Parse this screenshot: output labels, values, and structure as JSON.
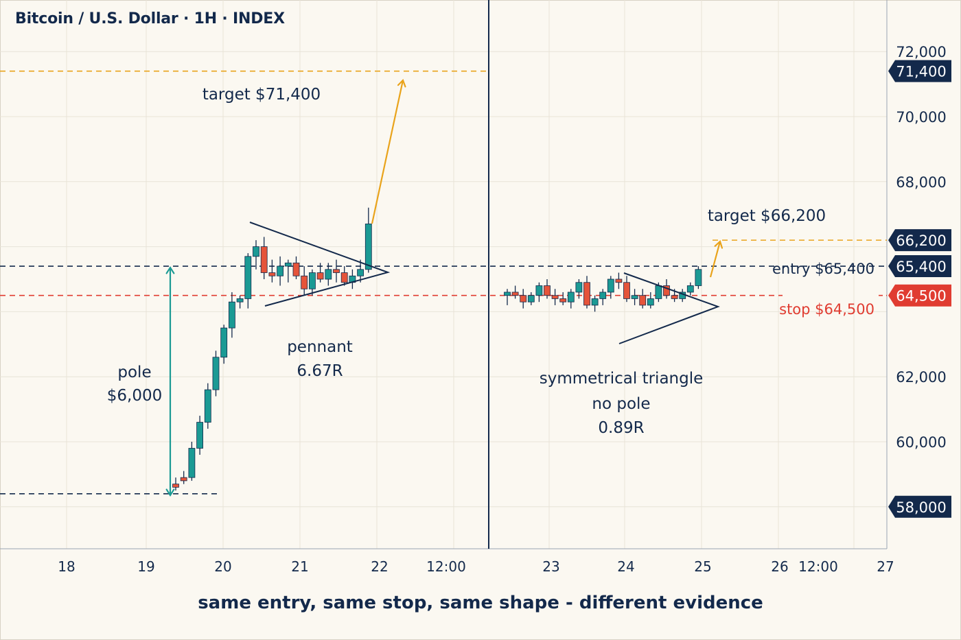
{
  "title": "Bitcoin / U.S. Dollar · 1H · INDEX",
  "caption": "same entry, same stop, same shape - different evidence",
  "colors": {
    "background": "#fbf8f1",
    "up": "#1b9a94",
    "down": "#e5543a",
    "ink": "#13294b",
    "target": "#e9a31b",
    "stop": "#e03c31"
  },
  "chart_data": {
    "type": "candlestick",
    "ylim": [
      56700,
      73400
    ],
    "grid": true,
    "y_axis_ticks": [
      "72,000",
      "70,000",
      "68,000",
      "62,000",
      "60,000"
    ],
    "x_axis_ticks": [
      "18",
      "19",
      "20",
      "21",
      "22",
      "12:00",
      "23",
      "24",
      "25",
      "26",
      "12:00",
      "27"
    ],
    "price_tags": [
      {
        "value": 71400,
        "label": "71,400",
        "style": "ink"
      },
      {
        "value": 66200,
        "label": "66,200",
        "style": "ink"
      },
      {
        "value": 65400,
        "label": "65,400",
        "style": "ink"
      },
      {
        "value": 64500,
        "label": "64,500",
        "style": "stop"
      },
      {
        "value": 58000,
        "label": "58,000",
        "style": "ink"
      }
    ],
    "levels": [
      {
        "name": "entry",
        "value": 65400
      },
      {
        "name": "stop",
        "value": 64500
      },
      {
        "name": "target_left",
        "value": 71400
      },
      {
        "name": "target_right",
        "value": 66200
      },
      {
        "name": "pole_base",
        "value": 58400
      }
    ],
    "panels": [
      {
        "pattern": "pennant",
        "annotations": {
          "pole_label": "pole",
          "pole_value": "$6,000",
          "pattern_label": "pennant",
          "ratio": "6.67R",
          "target_label": "target $71,400"
        },
        "candles": [
          [
            58700,
            58900,
            58500,
            58600
          ],
          [
            58900,
            59100,
            58700,
            58800
          ],
          [
            58900,
            60000,
            58800,
            59800
          ],
          [
            59800,
            60800,
            59600,
            60600
          ],
          [
            60600,
            61800,
            60400,
            61600
          ],
          [
            61600,
            62800,
            61400,
            62600
          ],
          [
            62600,
            63600,
            62400,
            63500
          ],
          [
            63500,
            64600,
            63200,
            64300
          ],
          [
            64300,
            64500,
            64100,
            64400
          ],
          [
            64400,
            65800,
            64100,
            65700
          ],
          [
            65700,
            66200,
            65300,
            66000
          ],
          [
            66000,
            66300,
            65000,
            65200
          ],
          [
            65200,
            65600,
            64900,
            65100
          ],
          [
            65100,
            65700,
            64800,
            65400
          ],
          [
            65400,
            65600,
            64900,
            65500
          ],
          [
            65500,
            65700,
            65000,
            65100
          ],
          [
            65100,
            65400,
            64500,
            64700
          ],
          [
            64700,
            65300,
            64500,
            65200
          ],
          [
            65200,
            65500,
            64900,
            65000
          ],
          [
            65000,
            65500,
            64800,
            65300
          ],
          [
            65300,
            65600,
            64900,
            65200
          ],
          [
            65200,
            65400,
            64800,
            64900
          ],
          [
            64900,
            65300,
            64700,
            65100
          ],
          [
            65100,
            65600,
            64900,
            65300
          ],
          [
            65300,
            67200,
            65200,
            66700
          ]
        ]
      },
      {
        "pattern": "symmetrical triangle",
        "annotations": {
          "pattern_label": "symmetrical triangle",
          "pole_label": "no pole",
          "ratio": "0.89R",
          "target_label": "target $66,200",
          "entry_label": "entry $65,400",
          "stop_label": "stop $64,500"
        },
        "candles": [
          [
            64500,
            64700,
            64200,
            64600
          ],
          [
            64600,
            64800,
            64400,
            64500
          ],
          [
            64500,
            64700,
            64100,
            64300
          ],
          [
            64300,
            64600,
            64200,
            64500
          ],
          [
            64500,
            64900,
            64300,
            64800
          ],
          [
            64800,
            65000,
            64400,
            64500
          ],
          [
            64500,
            64700,
            64200,
            64400
          ],
          [
            64400,
            64600,
            64200,
            64300
          ],
          [
            64300,
            64700,
            64100,
            64600
          ],
          [
            64600,
            65000,
            64400,
            64900
          ],
          [
            64900,
            65100,
            64100,
            64200
          ],
          [
            64200,
            64500,
            64000,
            64400
          ],
          [
            64400,
            64700,
            64200,
            64600
          ],
          [
            64600,
            65100,
            64400,
            65000
          ],
          [
            65000,
            65200,
            64700,
            64900
          ],
          [
            64900,
            65100,
            64300,
            64400
          ],
          [
            64400,
            64700,
            64200,
            64500
          ],
          [
            64500,
            64700,
            64100,
            64200
          ],
          [
            64200,
            64600,
            64100,
            64400
          ],
          [
            64400,
            64900,
            64300,
            64800
          ],
          [
            64800,
            65000,
            64400,
            64500
          ],
          [
            64500,
            64700,
            64300,
            64400
          ],
          [
            64400,
            64700,
            64300,
            64600
          ],
          [
            64600,
            64900,
            64500,
            64800
          ],
          [
            64800,
            65400,
            64700,
            65300
          ]
        ]
      }
    ]
  }
}
